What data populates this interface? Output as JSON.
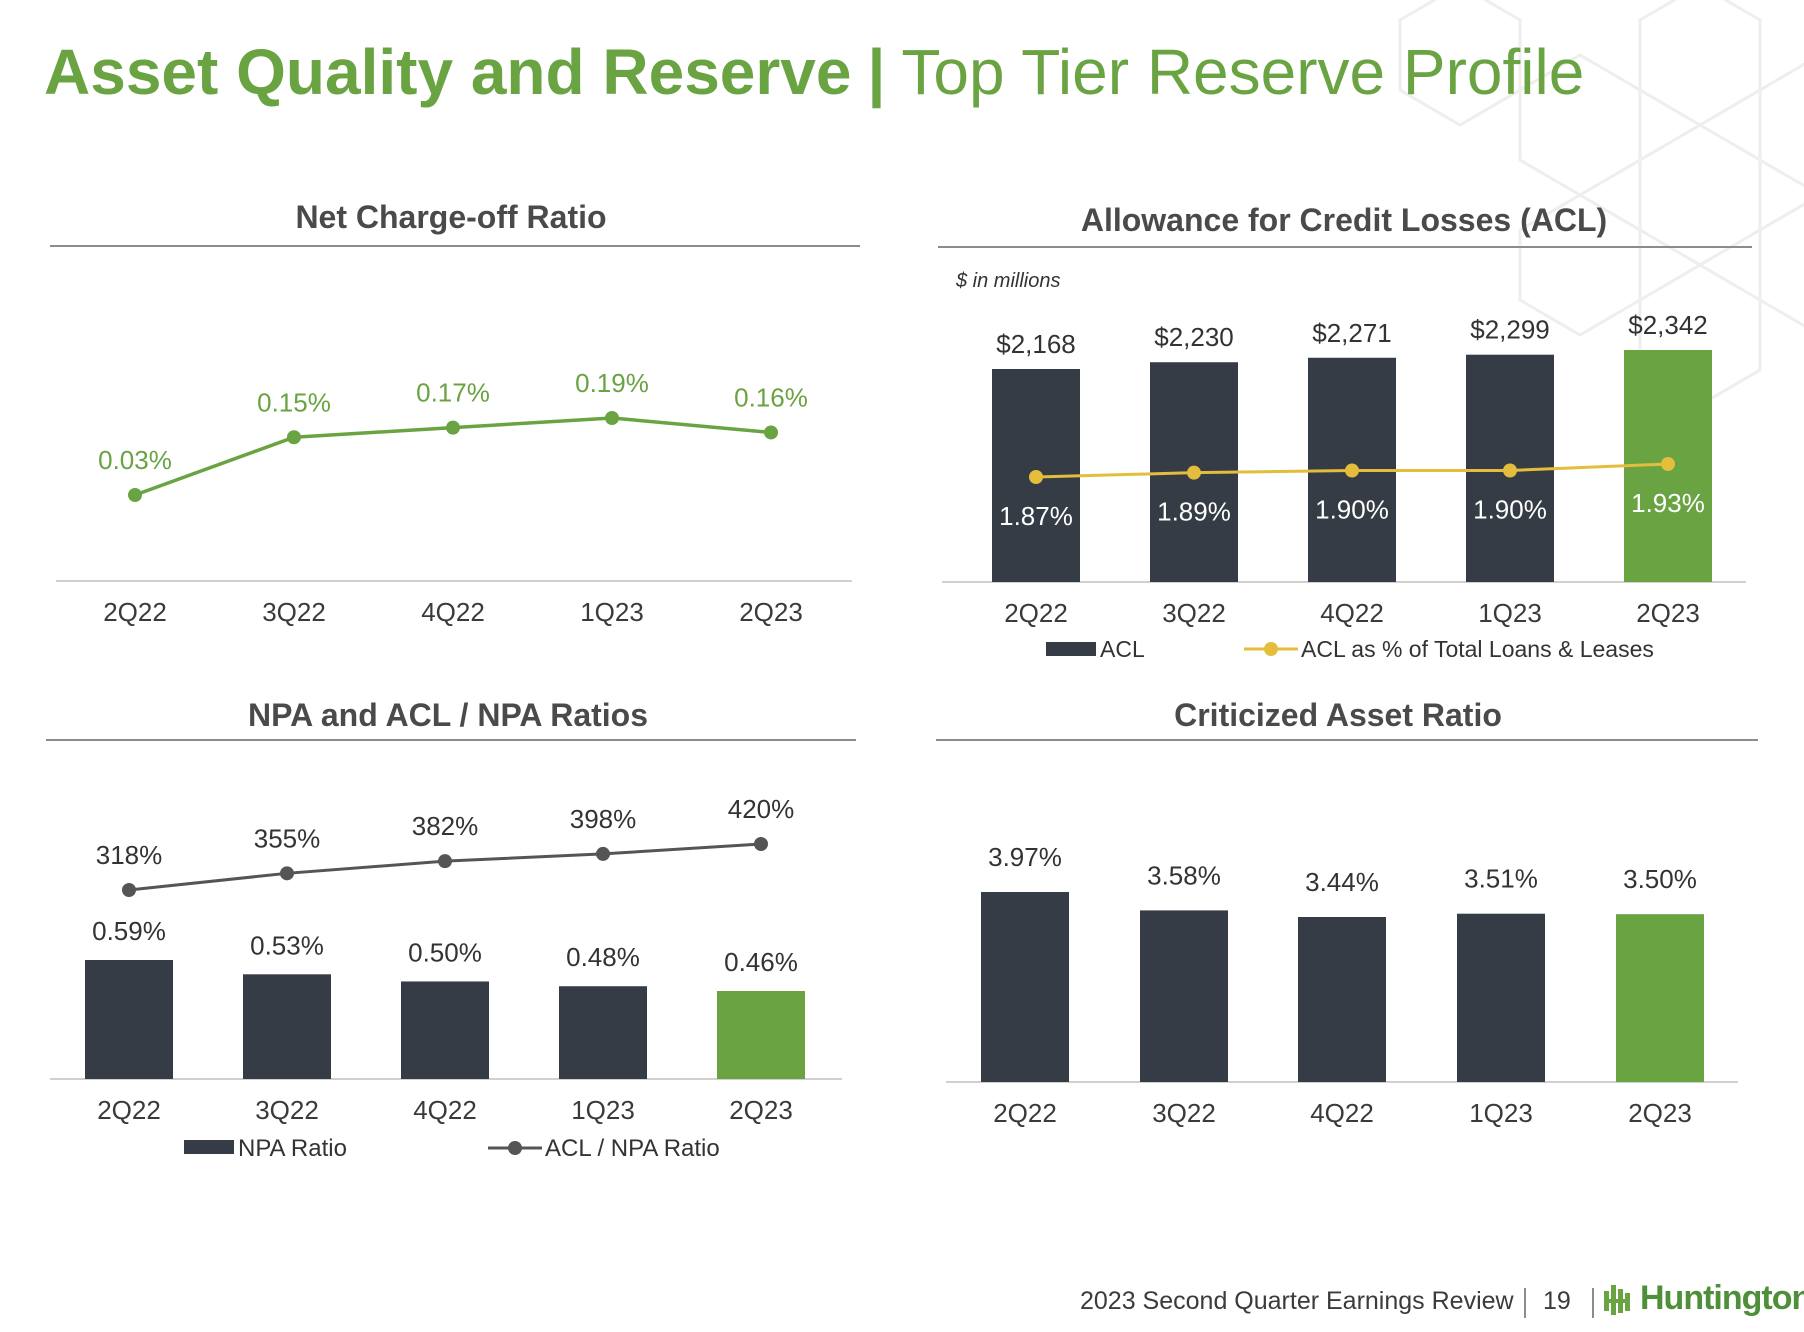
{
  "header": {
    "title_bold": "Asset Quality and Reserve",
    "title_separator": "|",
    "title_light": "Top Tier Reserve Profile"
  },
  "colors": {
    "green": "#6aa342",
    "dark_bar": "#353c45",
    "yellow_line": "#e3bd3b",
    "gray_line": "#555555",
    "axis": "#d0d0d0"
  },
  "footer": {
    "text": "2023 Second Quarter Earnings Review",
    "page": "19",
    "logo": "Huntington",
    "logo_icon": "huntington-logo-icon"
  },
  "chart_data": [
    {
      "id": "nco",
      "type": "line",
      "title": "Net Charge-off Ratio",
      "categories": [
        "2Q22",
        "3Q22",
        "4Q22",
        "1Q23",
        "2Q23"
      ],
      "series": [
        {
          "values": [
            0.03,
            0.15,
            0.17,
            0.19,
            0.16
          ],
          "labels": [
            "0.03%",
            "0.15%",
            "0.17%",
            "0.19%",
            "0.16%"
          ]
        }
      ],
      "grid": false
    },
    {
      "id": "acl",
      "type": "bar",
      "title": "Allowance for Credit Losses (ACL)",
      "unit_note": "$ in millions",
      "categories": [
        "2Q22",
        "3Q22",
        "4Q22",
        "1Q23",
        "2Q23"
      ],
      "series": [
        {
          "name": "ACL",
          "type": "bar",
          "values": [
            2168,
            2230,
            2271,
            2299,
            2342
          ],
          "labels": [
            "$2,168",
            "$2,230",
            "$2,271",
            "$2,299",
            "$2,342"
          ]
        },
        {
          "name": "ACL as % of Total Loans & Leases",
          "type": "line",
          "values": [
            1.87,
            1.89,
            1.9,
            1.9,
            1.93
          ],
          "labels": [
            "1.87%",
            "1.89%",
            "1.90%",
            "1.90%",
            "1.93%"
          ]
        }
      ],
      "legend": "bottom",
      "grid": false
    },
    {
      "id": "npa",
      "type": "bar",
      "title": "NPA and ACL / NPA Ratios",
      "categories": [
        "2Q22",
        "3Q22",
        "4Q22",
        "1Q23",
        "2Q23"
      ],
      "series": [
        {
          "name": "NPA Ratio",
          "type": "bar",
          "values": [
            0.59,
            0.53,
            0.5,
            0.48,
            0.46
          ],
          "labels": [
            "0.59%",
            "0.53%",
            "0.50%",
            "0.48%",
            "0.46%"
          ]
        },
        {
          "name": "ACL / NPA Ratio",
          "type": "line",
          "values": [
            318,
            355,
            382,
            398,
            420
          ],
          "labels": [
            "318%",
            "355%",
            "382%",
            "398%",
            "420%"
          ]
        }
      ],
      "legend": "bottom",
      "grid": false
    },
    {
      "id": "criticized",
      "type": "bar",
      "title": "Criticized Asset Ratio",
      "categories": [
        "2Q22",
        "3Q22",
        "4Q22",
        "1Q23",
        "2Q23"
      ],
      "series": [
        {
          "values": [
            3.97,
            3.58,
            3.44,
            3.51,
            3.5
          ],
          "labels": [
            "3.97%",
            "3.58%",
            "3.44%",
            "3.51%",
            "3.50%"
          ]
        }
      ],
      "grid": false
    }
  ]
}
